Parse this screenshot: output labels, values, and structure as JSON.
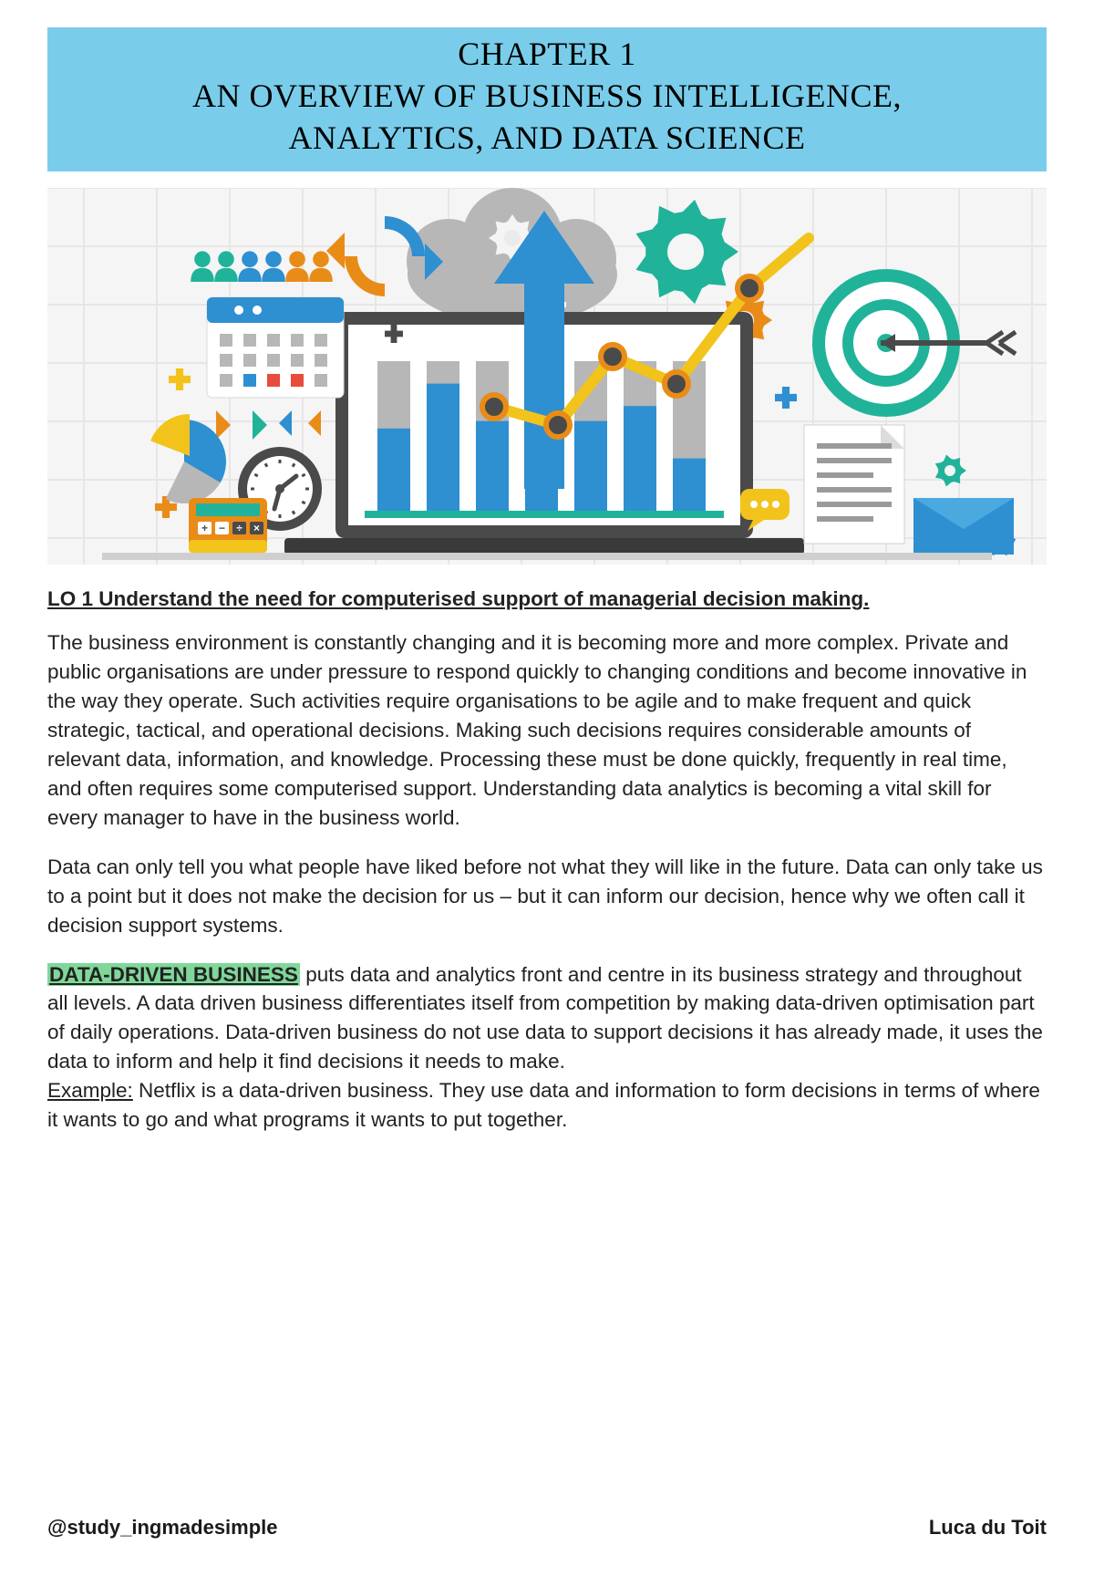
{
  "banner": {
    "line1": "CHAPTER 1",
    "line2": "AN OVERVIEW OF BUSINESS INTELLIGENCE,",
    "line3": "ANALYTICS, AND DATA SCIENCE",
    "bg": "#79cdea"
  },
  "illustration": {
    "bg": "#f5f5f5",
    "grid_color": "#e6e6e6",
    "grid_spacing": 80,
    "laptop": {
      "body": "#4a4a4a",
      "screen_bg": "#ffffff",
      "screen_border": "#4a4a4a",
      "base": "#3a3a3a"
    },
    "bar_chart": {
      "track": "#b7b7b7",
      "fill": "#2e8fd1",
      "bars": [
        0.55,
        0.85,
        0.6,
        0.95,
        0.6,
        0.7,
        0.35
      ],
      "axis": "#20b39a"
    },
    "arrow_up": "#2e8fd1",
    "cloud": "#b7b7b7",
    "gear_large": "#20b39a",
    "gear_top": "#b7b7b7",
    "gear_small1": "#e98c17",
    "gear_small2": "#20b39a",
    "ring_arrows": {
      "outer1": "#2e8fd1",
      "outer2": "#e98c17"
    },
    "target": {
      "bg": "#ffffff",
      "ring": "#20b39a",
      "arrow": "#4a4a4a"
    },
    "pie": {
      "a": "#2e8fd1",
      "b": "#f2c31b",
      "c": "#b7b7b7"
    },
    "clock": {
      "face": "#ffffff",
      "rim": "#4a4a4a",
      "hand": "#4a4a4a"
    },
    "calc": {
      "body": "#e98c17",
      "screen": "#20b39a",
      "keys": "#ffffff",
      "keys_dark": "#4a4a4a",
      "bottom": "#f2c31b"
    },
    "people": {
      "a": "#20b39a",
      "b": "#2e8fd1",
      "c": "#e98c17"
    },
    "calendar": {
      "head": "#2e8fd1",
      "body": "#ffffff",
      "cell": "#b7b7b7",
      "cell_accent": "#e74c3c"
    },
    "doc": {
      "body": "#ffffff",
      "line": "#9a9a9a",
      "fold": "#dcdcdc"
    },
    "envelope": {
      "body": "#2e8fd1",
      "flap": "#4aa9df",
      "stripe": "#ffffff"
    },
    "chat": "#f2c31b",
    "trendline": {
      "stroke": "#f2c31b",
      "node_rim": "#e98c17",
      "node_fill": "#4a4a4a"
    },
    "plus": {
      "a": "#2e8fd1",
      "b": "#f2c31b",
      "c": "#4a4a4a",
      "d": "#e98c17"
    },
    "triangles": {
      "a": "#e98c17",
      "b": "#20b39a",
      "c": "#2e8fd1"
    }
  },
  "lo_heading": "LO 1 Understand the need for computerised support of managerial decision making.",
  "p1": "The business environment is constantly changing and it is becoming more and more complex. Private and public organisations are under pressure to respond quickly to changing conditions and become innovative in the way they operate. Such activities require organisations to be agile and to make frequent and quick strategic, tactical, and operational decisions. Making such decisions requires considerable amounts of relevant data, information, and knowledge. Processing these must be done quickly, frequently in real time, and often requires some computerised support. Understanding data analytics is becoming a vital skill for every manager to have in the business world.",
  "p2": "Data can only tell you what people have liked before not what they will like in the future. Data can only take us to a point but it does not make the decision for us – but it can inform our decision, hence why we often call it decision support systems.",
  "ddb": {
    "label": "DATA-DRIVEN BUSINESS",
    "text": " puts data and analytics front and centre in its business strategy and throughout all levels. A data driven business differentiates itself from competition by making data-driven optimisation part of daily operations. Data-driven business do not use data to support decisions it has already made, it uses the data to inform and help it find decisions it needs to make."
  },
  "example": {
    "label": "Example:",
    "text": " Netflix is a data-driven business. They use data and information to form decisions in terms of where it wants to go and what programs it wants to put together."
  },
  "footer": {
    "left": "@study_ingmadesimple",
    "right": "Luca du Toit"
  }
}
